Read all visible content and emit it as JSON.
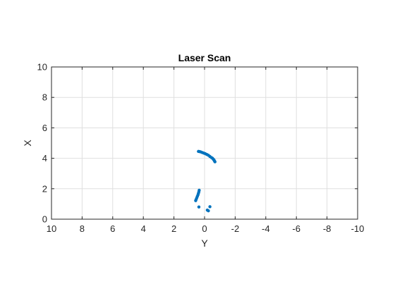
{
  "chart_data": {
    "type": "scatter",
    "title": "Laser Scan",
    "xlabel": "Y",
    "ylabel": "X",
    "xlim": [
      10,
      -10
    ],
    "ylim": [
      0,
      10
    ],
    "x_reversed": true,
    "x_ticks": [
      10,
      8,
      6,
      4,
      2,
      0,
      -2,
      -4,
      -6,
      -8,
      -10
    ],
    "x_tick_labels": [
      "10",
      "8",
      "6",
      "4",
      "2",
      "0",
      "-2",
      "-4",
      "-6",
      "-8",
      "-10"
    ],
    "y_ticks": [
      0,
      2,
      4,
      6,
      8,
      10
    ],
    "y_tick_labels": [
      "0",
      "2",
      "4",
      "6",
      "8",
      "10"
    ],
    "grid": true,
    "marker_color": "#0072BD",
    "series": [
      {
        "points": [
          {
            "y": 0.4,
            "x": 4.45
          },
          {
            "y": 0.33,
            "x": 4.44
          },
          {
            "y": 0.25,
            "x": 4.42
          },
          {
            "y": 0.15,
            "x": 4.38
          },
          {
            "y": 0.05,
            "x": 4.34
          },
          {
            "y": -0.05,
            "x": 4.3
          },
          {
            "y": -0.15,
            "x": 4.25
          },
          {
            "y": -0.25,
            "x": 4.2
          },
          {
            "y": -0.35,
            "x": 4.12
          },
          {
            "y": -0.45,
            "x": 4.05
          },
          {
            "y": -0.52,
            "x": 4.0
          },
          {
            "y": -0.58,
            "x": 3.93
          },
          {
            "y": -0.62,
            "x": 3.88
          },
          {
            "y": -0.65,
            "x": 3.82
          },
          {
            "y": -0.68,
            "x": 3.77
          },
          {
            "y": 0.35,
            "x": 1.9
          },
          {
            "y": 0.37,
            "x": 1.8
          },
          {
            "y": 0.4,
            "x": 1.7
          },
          {
            "y": 0.43,
            "x": 1.6
          },
          {
            "y": 0.47,
            "x": 1.5
          },
          {
            "y": 0.51,
            "x": 1.4
          },
          {
            "y": 0.55,
            "x": 1.3
          },
          {
            "y": 0.58,
            "x": 1.22
          },
          {
            "y": 0.37,
            "x": 0.8
          },
          {
            "y": -0.35,
            "x": 0.82
          },
          {
            "y": -0.18,
            "x": 0.6
          },
          {
            "y": -0.25,
            "x": 0.55
          }
        ]
      }
    ]
  }
}
